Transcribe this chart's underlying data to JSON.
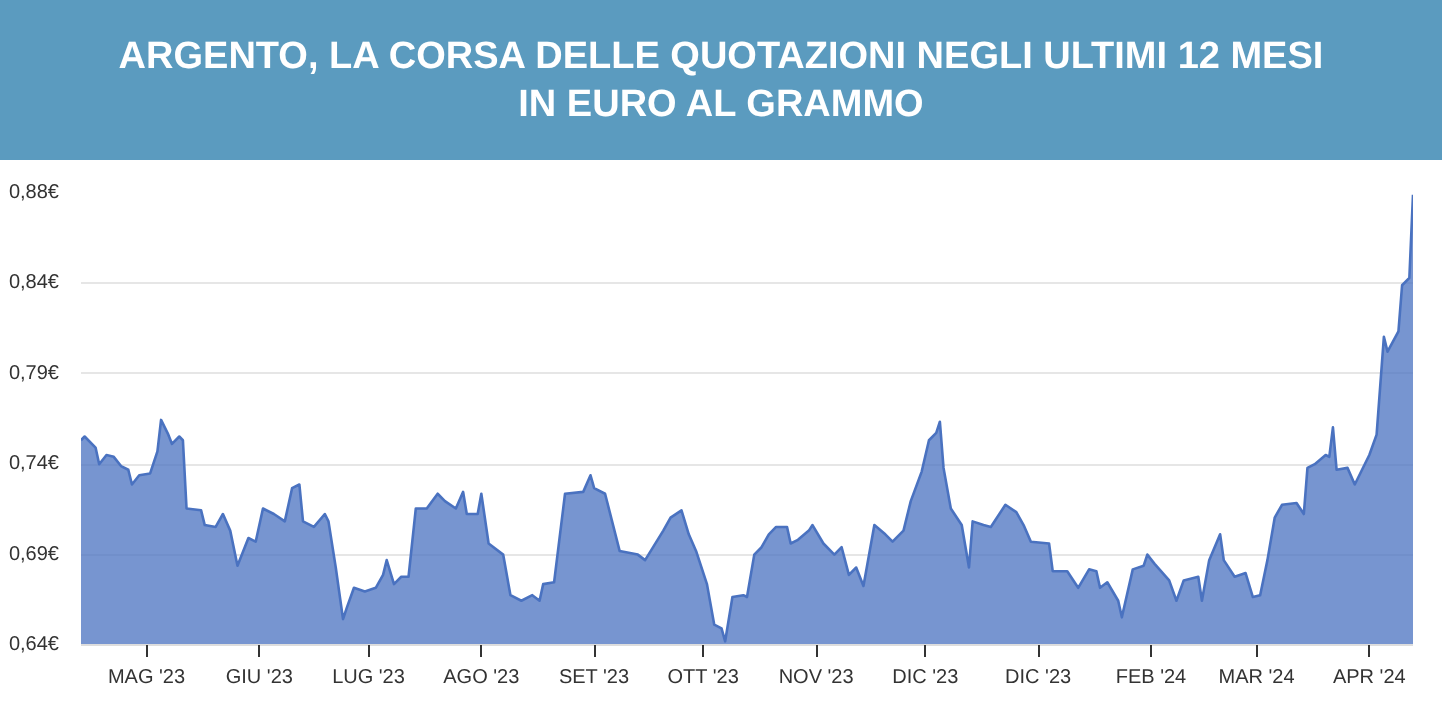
{
  "chart_data": {
    "type": "area",
    "title": "ARGENTO, LA CORSA DELLE QUOTAZIONI NEGLI ULTIMI 12 MESI\nIN EURO AL GRAMMO",
    "xlim": [
      "2023-04-13",
      "2024-04-13"
    ],
    "ylim": [
      0.64,
      0.885
    ],
    "xticks": [
      {
        "value": "2023-05-01",
        "label": "MAG '23"
      },
      {
        "value": "2023-06-01",
        "label": "GIU '23"
      },
      {
        "value": "2023-07-01",
        "label": "LUG '23"
      },
      {
        "value": "2023-08-01",
        "label": "AGO '23"
      },
      {
        "value": "2023-09-01",
        "label": "SET '23"
      },
      {
        "value": "2023-10-01",
        "label": "OTT '23"
      },
      {
        "value": "2023-11-01",
        "label": "NOV '23"
      },
      {
        "value": "2023-12-01",
        "label": "DIC '23"
      },
      {
        "value": "2024-01-01",
        "label": "DIC '23"
      },
      {
        "value": "2024-02-01",
        "label": "FEB '24"
      },
      {
        "value": "2024-03-01",
        "label": "MAR '24"
      },
      {
        "value": "2024-04-01",
        "label": "APR '24"
      }
    ],
    "yticks": [
      {
        "value": 0.64,
        "label": "0,64€"
      },
      {
        "value": 0.689,
        "label": "0,69€"
      },
      {
        "value": 0.738,
        "label": "0,74€"
      },
      {
        "value": 0.787,
        "label": "0,79€"
      },
      {
        "value": 0.836,
        "label": "0,84€"
      },
      {
        "value": 0.885,
        "label": "0,88€"
      }
    ],
    "grid": "y",
    "series": [
      {
        "color": "#4a72c0",
        "x": [
          "2023-04-13",
          "2023-04-14",
          "2023-04-17",
          "2023-04-18",
          "2023-04-20",
          "2023-04-22",
          "2023-04-24",
          "2023-04-26",
          "2023-04-27",
          "2023-04-29",
          "2023-05-02",
          "2023-05-04",
          "2023-05-05",
          "2023-05-07",
          "2023-05-08",
          "2023-05-10",
          "2023-05-11",
          "2023-05-12",
          "2023-05-16",
          "2023-05-17",
          "2023-05-20",
          "2023-05-22",
          "2023-05-24",
          "2023-05-26",
          "2023-05-29",
          "2023-05-31",
          "2023-06-02",
          "2023-06-05",
          "2023-06-08",
          "2023-06-10",
          "2023-06-12",
          "2023-06-13",
          "2023-06-16",
          "2023-06-19",
          "2023-06-20",
          "2023-06-22",
          "2023-06-24",
          "2023-06-25",
          "2023-06-27",
          "2023-06-30",
          "2023-07-03",
          "2023-07-05",
          "2023-07-06",
          "2023-07-08",
          "2023-07-10",
          "2023-07-12",
          "2023-07-14",
          "2023-07-17",
          "2023-07-20",
          "2023-07-22",
          "2023-07-25",
          "2023-07-27",
          "2023-07-28",
          "2023-07-31",
          "2023-08-01",
          "2023-08-03",
          "2023-08-07",
          "2023-08-09",
          "2023-08-12",
          "2023-08-15",
          "2023-08-17",
          "2023-08-18",
          "2023-08-21",
          "2023-08-24",
          "2023-08-29",
          "2023-08-31",
          "2023-09-01",
          "2023-09-04",
          "2023-09-08",
          "2023-09-13",
          "2023-09-15",
          "2023-09-20",
          "2023-09-22",
          "2023-09-25",
          "2023-09-27",
          "2023-09-29",
          "2023-10-02",
          "2023-10-04",
          "2023-10-06",
          "2023-10-07",
          "2023-10-09",
          "2023-10-12",
          "2023-10-13",
          "2023-10-15",
          "2023-10-17",
          "2023-10-19",
          "2023-10-21",
          "2023-10-24",
          "2023-10-25",
          "2023-10-27",
          "2023-10-30",
          "2023-10-31",
          "2023-11-03",
          "2023-11-06",
          "2023-11-08",
          "2023-11-10",
          "2023-11-12",
          "2023-11-14",
          "2023-11-17",
          "2023-11-20",
          "2023-11-22",
          "2023-11-25",
          "2023-11-27",
          "2023-11-30",
          "2023-12-02",
          "2023-12-04",
          "2023-12-05",
          "2023-12-06",
          "2023-12-08",
          "2023-12-11",
          "2023-12-13",
          "2023-12-14",
          "2023-12-17",
          "2023-12-19",
          "2023-12-23",
          "2023-12-26",
          "2023-12-28",
          "2023-12-30",
          "2024-01-04",
          "2024-01-05",
          "2024-01-09",
          "2024-01-12",
          "2024-01-15",
          "2024-01-17",
          "2024-01-18",
          "2024-01-20",
          "2024-01-23",
          "2024-01-24",
          "2024-01-27",
          "2024-01-30",
          "2024-01-31",
          "2024-02-02",
          "2024-02-06",
          "2024-02-08",
          "2024-02-10",
          "2024-02-14",
          "2024-02-15",
          "2024-02-17",
          "2024-02-20",
          "2024-02-21",
          "2024-02-24",
          "2024-02-27",
          "2024-02-29",
          "2024-03-02",
          "2024-03-04",
          "2024-03-06",
          "2024-03-08",
          "2024-03-12",
          "2024-03-14",
          "2024-03-15",
          "2024-03-17",
          "2024-03-20",
          "2024-03-21",
          "2024-03-22",
          "2024-03-23",
          "2024-03-26",
          "2024-03-28",
          "2024-04-01",
          "2024-04-03",
          "2024-04-05",
          "2024-04-06",
          "2024-04-09",
          "2024-04-10",
          "2024-04-12",
          "2024-04-13"
        ],
        "values": [
          0.751,
          0.753,
          0.747,
          0.738,
          0.743,
          0.742,
          0.737,
          0.735,
          0.727,
          0.732,
          0.733,
          0.745,
          0.762,
          0.754,
          0.749,
          0.753,
          0.751,
          0.714,
          0.713,
          0.705,
          0.704,
          0.711,
          0.702,
          0.683,
          0.698,
          0.696,
          0.714,
          0.711,
          0.707,
          0.725,
          0.727,
          0.707,
          0.704,
          0.711,
          0.707,
          0.682,
          0.654,
          0.66,
          0.671,
          0.669,
          0.671,
          0.678,
          0.686,
          0.673,
          0.677,
          0.677,
          0.714,
          0.714,
          0.722,
          0.718,
          0.714,
          0.723,
          0.711,
          0.711,
          0.722,
          0.695,
          0.689,
          0.667,
          0.664,
          0.667,
          0.664,
          0.673,
          0.674,
          0.722,
          0.723,
          0.732,
          0.725,
          0.722,
          0.691,
          0.689,
          0.686,
          0.702,
          0.709,
          0.713,
          0.7,
          0.691,
          0.673,
          0.651,
          0.649,
          0.642,
          0.666,
          0.667,
          0.666,
          0.689,
          0.693,
          0.7,
          0.704,
          0.704,
          0.695,
          0.697,
          0.702,
          0.705,
          0.695,
          0.689,
          0.693,
          0.678,
          0.682,
          0.672,
          0.705,
          0.7,
          0.696,
          0.702,
          0.718,
          0.734,
          0.751,
          0.755,
          0.761,
          0.736,
          0.714,
          0.705,
          0.682,
          0.707,
          0.705,
          0.704,
          0.716,
          0.712,
          0.705,
          0.696,
          0.695,
          0.68,
          0.68,
          0.671,
          0.681,
          0.68,
          0.671,
          0.674,
          0.664,
          0.655,
          0.681,
          0.683,
          0.689,
          0.684,
          0.675,
          0.664,
          0.675,
          0.677,
          0.664,
          0.686,
          0.7,
          0.686,
          0.677,
          0.679,
          0.666,
          0.667,
          0.686,
          0.709,
          0.716,
          0.717,
          0.711,
          0.736,
          0.738,
          0.743,
          0.742,
          0.758,
          0.735,
          0.736,
          0.727,
          0.743,
          0.754,
          0.807,
          0.799,
          0.81,
          0.835,
          0.839,
          0.884
        ]
      }
    ]
  }
}
